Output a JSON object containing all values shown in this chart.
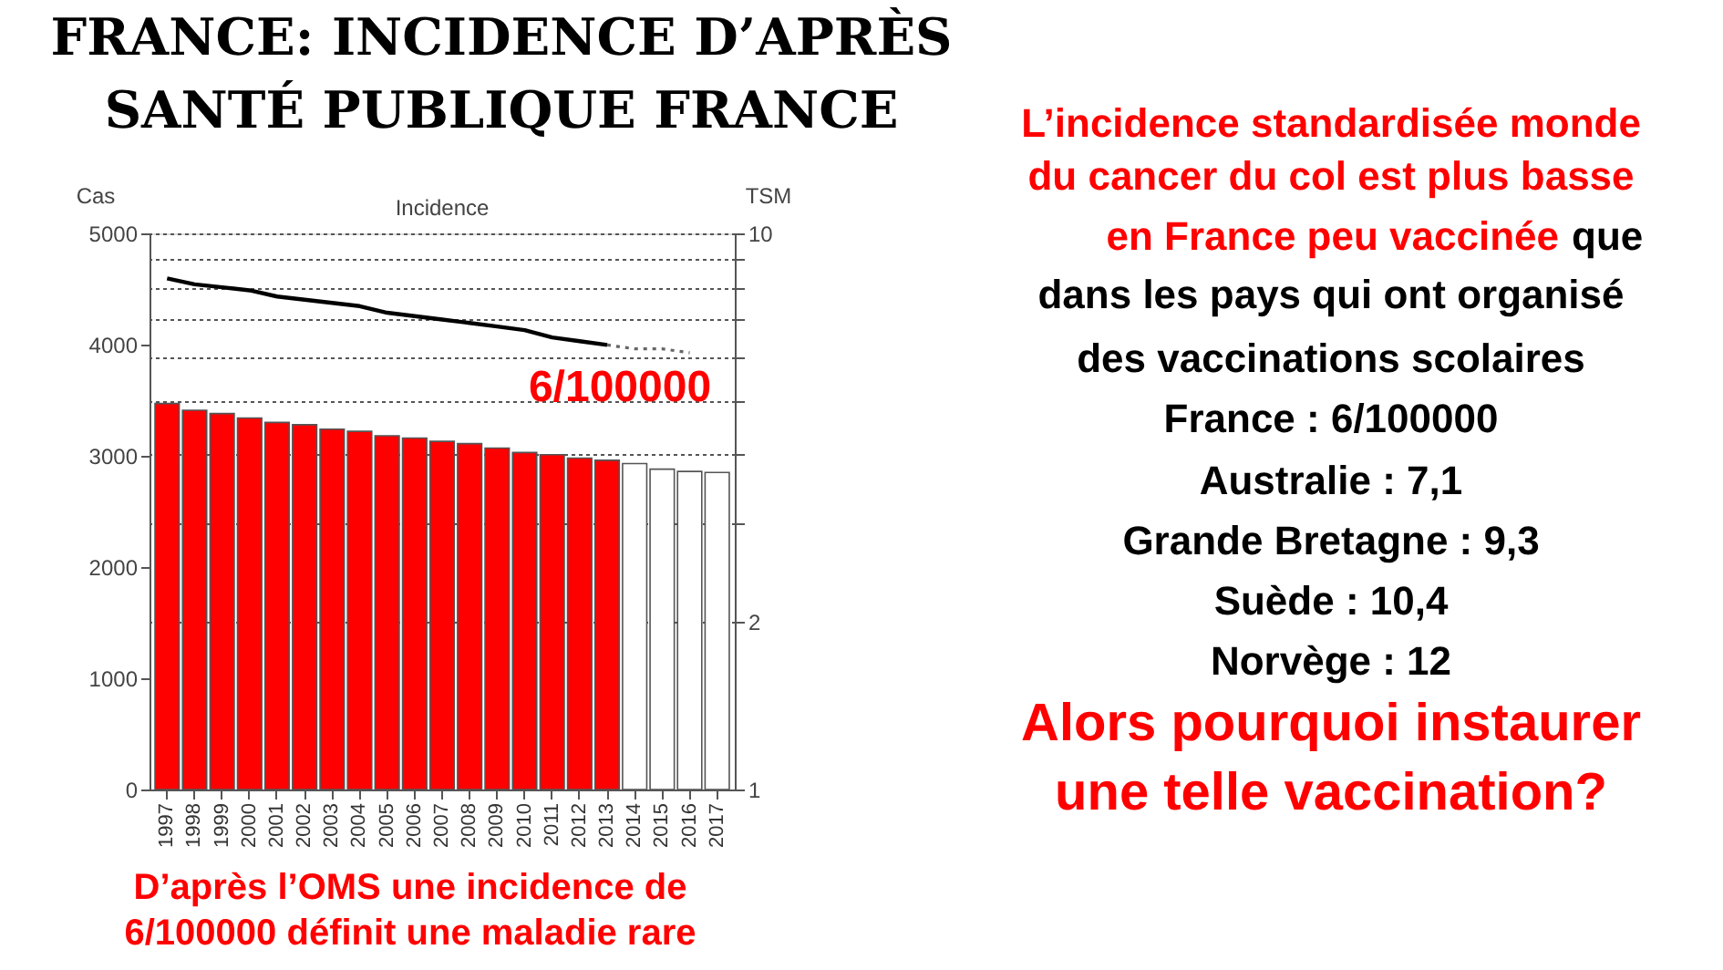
{
  "chart_data": {
    "type": "bar",
    "title": "Incidence",
    "ylabel": "Cas",
    "y2label": "TSM",
    "categories": [
      "1997",
      "1998",
      "1999",
      "2000",
      "2001",
      "2002",
      "2003",
      "2004",
      "2005",
      "2006",
      "2007",
      "2008",
      "2009",
      "2010",
      "2011",
      "2012",
      "2013",
      "2014",
      "2015",
      "2016",
      "2017"
    ],
    "series": [
      {
        "color": "#ff0000",
        "values": [
          3470,
          3410,
          3380,
          3340,
          3300,
          3280,
          3240,
          3220,
          3180,
          3160,
          3130,
          3110,
          3070,
          3030,
          3010,
          2980,
          2960,
          null,
          null,
          null,
          null
        ]
      },
      {
        "color": "#ffffff",
        "values": [
          null,
          null,
          null,
          null,
          null,
          null,
          null,
          null,
          null,
          null,
          null,
          null,
          null,
          null,
          null,
          null,
          null,
          2930,
          2880,
          2860,
          2850
        ]
      },
      {
        "type": "line",
        "axis": "y2",
        "color": "#000000",
        "line_style": "solid",
        "values": [
          8.3,
          8.1,
          8.0,
          7.9,
          7.7,
          7.6,
          7.5,
          7.4,
          7.2,
          7.1,
          7.0,
          6.9,
          6.8,
          6.7,
          6.5,
          6.4,
          6.3,
          null,
          null,
          null,
          null
        ]
      },
      {
        "type": "line",
        "axis": "y2",
        "color": "#666666",
        "line_style": "dotted",
        "values": [
          null,
          null,
          null,
          null,
          null,
          null,
          null,
          null,
          null,
          null,
          null,
          null,
          null,
          null,
          null,
          null,
          6.3,
          6.2,
          6.2,
          6.1,
          null
        ]
      }
    ],
    "ylim": [
      0,
      5000
    ],
    "yticks": [
      0,
      1000,
      2000,
      3000,
      4000,
      5000
    ],
    "y2lim": [
      1,
      10
    ],
    "y2ticks": [
      1,
      2,
      {
        "value": 3,
        "label": null
      },
      {
        "value": 4,
        "label": null
      },
      {
        "value": 5,
        "label": null
      },
      {
        "value": 6,
        "label": null
      },
      {
        "value": 7,
        "label": null
      },
      {
        "value": 8,
        "label": null
      },
      {
        "value": 9,
        "label": null
      },
      10
    ],
    "log": "y2",
    "grid": true,
    "annotations": [
      "FRANCE: INCIDENCE D’APRÈS",
      "SANTÉ PUBLIQUE FRANCE",
      "6/100000",
      "L’incidence standardisée monde",
      "du cancer du col est plus basse",
      "en France peu vaccinée",
      "que",
      "dans les pays qui ont organisé",
      "des vaccinations scolaires",
      "France : 6/100000",
      "Australie : 7,1",
      "Grande Bretagne :  9,3",
      "Suède : 10,4",
      "Norvège : 12",
      "Alors pourquoi instaurer",
      "une telle vaccination?",
      "D’après l’OMS une incidence de",
      "6/100000 définit une maladie rare"
    ]
  }
}
